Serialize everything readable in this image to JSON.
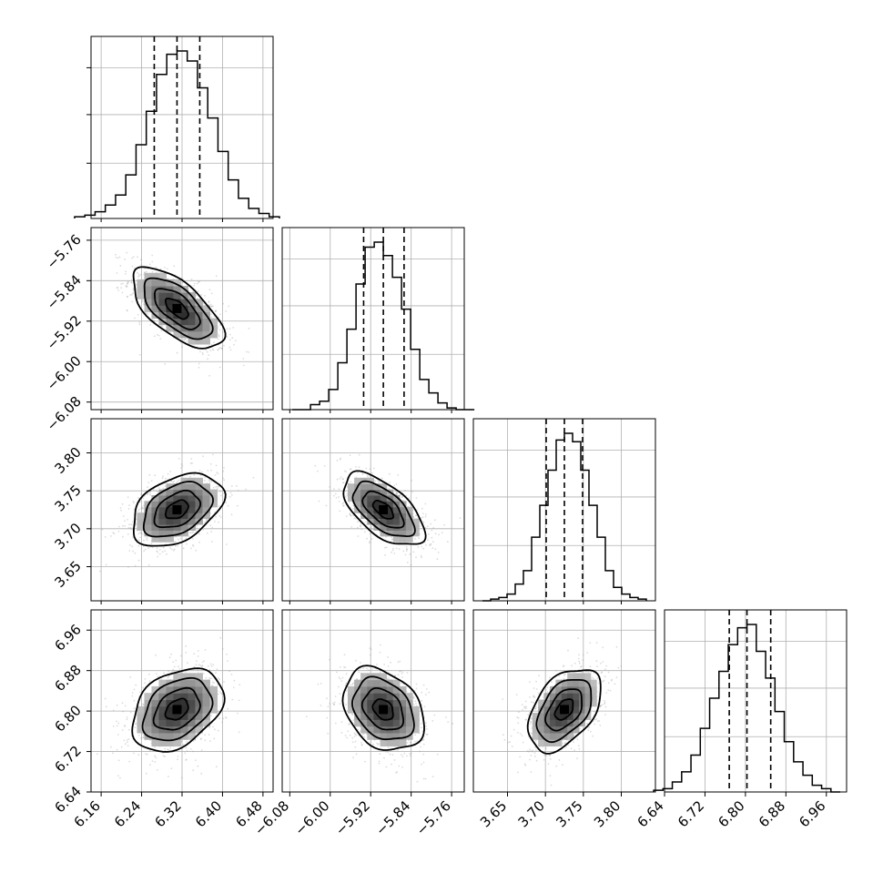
{
  "chart_data": {
    "type": "corner",
    "parameters": [
      {
        "ticks": [
          "6.16",
          "6.24",
          "6.32",
          "6.40",
          "6.48"
        ],
        "tick_values": [
          6.16,
          6.24,
          6.32,
          6.4,
          6.48
        ],
        "range": [
          6.14,
          6.5
        ],
        "quantiles": [
          6.265,
          6.31,
          6.355
        ]
      },
      {
        "ticks": [
          "−6.08",
          "−6.00",
          "−5.92",
          "−5.84",
          "−5.76"
        ],
        "tick_values": [
          -6.08,
          -6.0,
          -5.92,
          -5.84,
          -5.76
        ],
        "range": [
          -6.095,
          -5.735
        ],
        "quantiles": [
          -5.934,
          -5.895,
          -5.854
        ]
      },
      {
        "ticks": [
          "3.65",
          "3.70",
          "3.75",
          "3.80"
        ],
        "tick_values": [
          3.65,
          3.7,
          3.75,
          3.8
        ],
        "range": [
          3.605,
          3.845
        ],
        "quantiles": [
          3.701,
          3.725,
          3.749
        ]
      },
      {
        "ticks": [
          "6.64",
          "6.72",
          "6.80",
          "6.88",
          "6.96"
        ],
        "tick_values": [
          6.64,
          6.72,
          6.8,
          6.88,
          6.96
        ],
        "range": [
          6.64,
          7.0
        ],
        "quantiles": [
          6.768,
          6.803,
          6.85
        ]
      }
    ],
    "histograms": [
      [
        0.01,
        0.02,
        0.04,
        0.08,
        0.14,
        0.26,
        0.44,
        0.64,
        0.86,
        0.98,
        1.0,
        0.94,
        0.78,
        0.6,
        0.4,
        0.23,
        0.12,
        0.06,
        0.03,
        0.01
      ],
      [
        0.0,
        0.0,
        0.03,
        0.05,
        0.12,
        0.28,
        0.48,
        0.75,
        0.97,
        1.0,
        0.92,
        0.79,
        0.6,
        0.36,
        0.18,
        0.1,
        0.04,
        0.01,
        0.0,
        0.0
      ],
      [
        0.0,
        0.01,
        0.02,
        0.04,
        0.1,
        0.18,
        0.38,
        0.57,
        0.78,
        0.96,
        1.0,
        0.95,
        0.78,
        0.57,
        0.38,
        0.18,
        0.08,
        0.04,
        0.02,
        0.01
      ],
      [
        0.01,
        0.02,
        0.06,
        0.12,
        0.22,
        0.38,
        0.56,
        0.72,
        0.88,
        0.98,
        1.0,
        0.84,
        0.68,
        0.48,
        0.3,
        0.18,
        0.1,
        0.04,
        0.02,
        0.0
      ]
    ],
    "correlations": {
      "1-0": -0.65,
      "2-0": 0.4,
      "2-1": -0.6,
      "3-0": 0.35,
      "3-1": -0.3,
      "3-2": 0.45
    },
    "grid": true
  },
  "colors": {
    "line": "#000000",
    "grid": "#b0b0b0",
    "scatter": "#9a9a9a",
    "background": "#ffffff"
  }
}
